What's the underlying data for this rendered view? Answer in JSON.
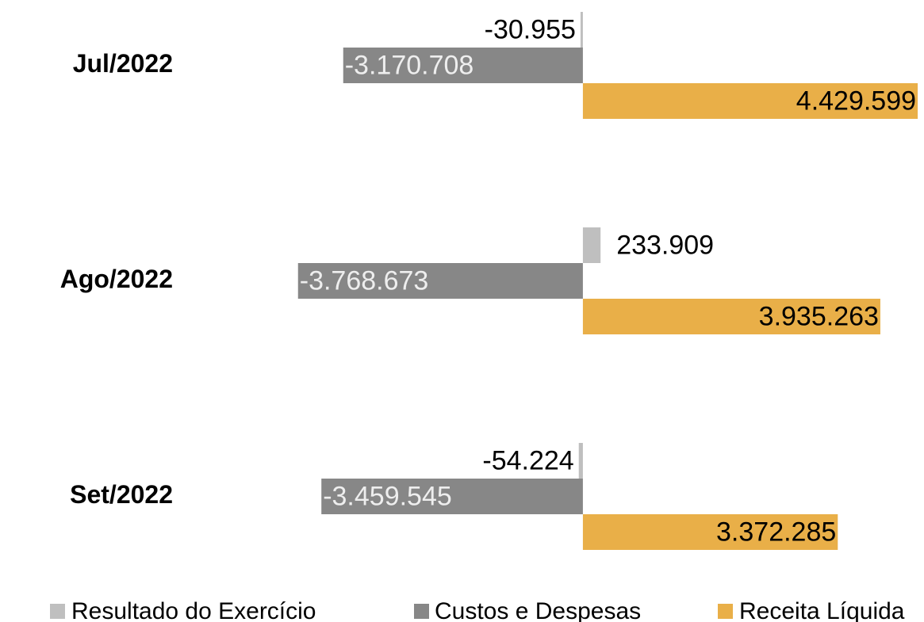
{
  "chart_data": {
    "type": "hbar",
    "categories": [
      "Jul/2022",
      "Ago/2022",
      "Set/2022"
    ],
    "xlim": [
      -3850000,
      4450000
    ],
    "series": [
      {
        "name": "Resultado do Exercício",
        "color": "#bfbfbf",
        "values": [
          -30955,
          233909,
          -54224
        ],
        "value_labels": [
          "-30.955",
          "233.909",
          "-54.224"
        ]
      },
      {
        "name": "Custos e Despesas",
        "color": "#878787",
        "values": [
          -3170708,
          -3768673,
          -3459545
        ],
        "value_labels": [
          "-3.170.708",
          "-3.768.673",
          "-3.459.545"
        ]
      },
      {
        "name": "Receita Líquida",
        "color": "#e9af48",
        "values": [
          4429599,
          3935263,
          3372285
        ],
        "value_labels": [
          "4.429.599",
          "3.935.263",
          "3.372.285"
        ]
      }
    ]
  }
}
